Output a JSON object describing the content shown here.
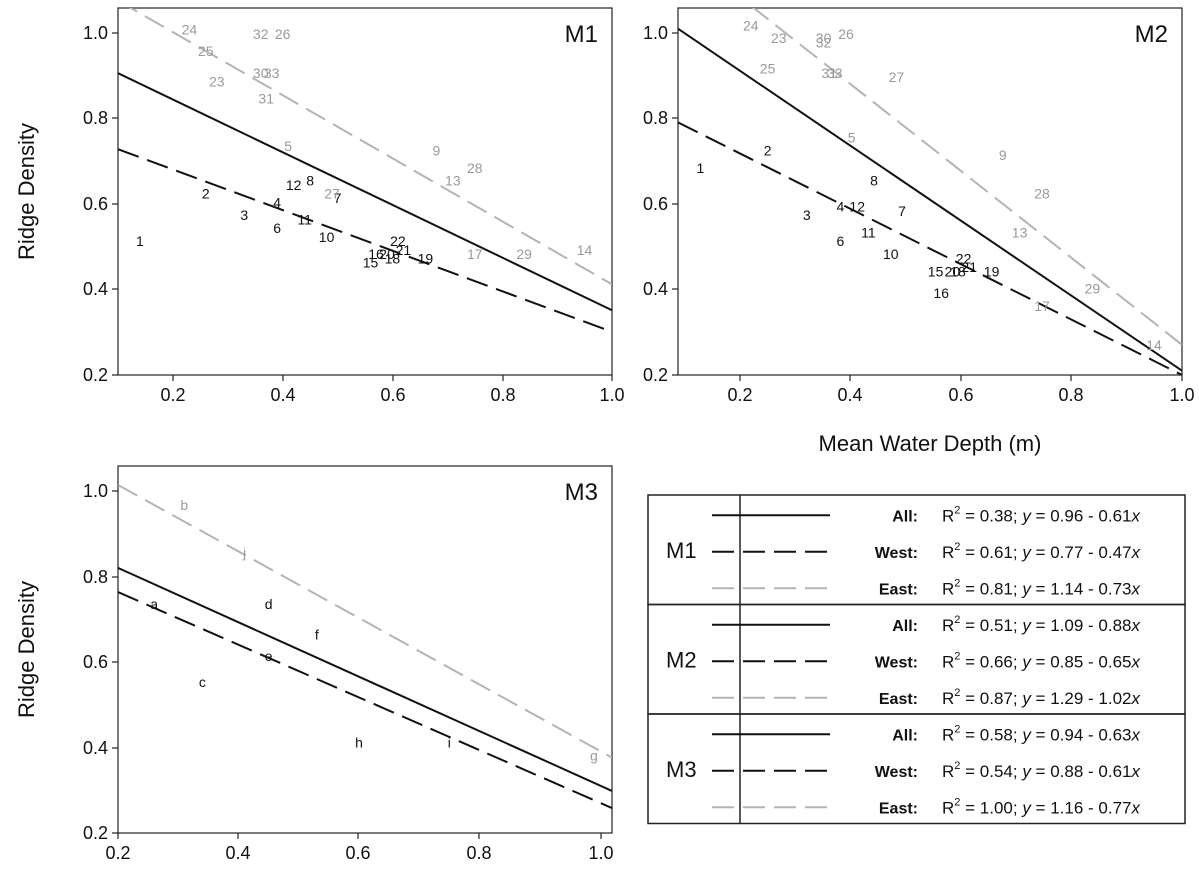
{
  "chart_data": [
    {
      "type": "scatter",
      "panel": "M1",
      "title": "M1",
      "xlabel": "",
      "ylabel": "Ridge Density",
      "xlim": [
        0.1,
        1.0
      ],
      "ylim": [
        0.2,
        1.05
      ],
      "xticks": [
        "0.2",
        "0.4",
        "0.6",
        "0.8",
        "1.0"
      ],
      "yticks": [
        "0.2",
        "0.4",
        "0.6",
        "0.8",
        "1.0"
      ],
      "lines": [
        {
          "name": "All",
          "intercept": 0.96,
          "slope": -0.61,
          "style": "solid",
          "color": "#111111"
        },
        {
          "name": "West",
          "intercept": 0.77,
          "slope": -0.47,
          "style": "dashed",
          "color": "#111111"
        },
        {
          "name": "East",
          "intercept": 1.14,
          "slope": -0.73,
          "style": "dashed",
          "color": "#b4b4b4"
        }
      ],
      "points": [
        {
          "label": "1",
          "x": 0.14,
          "y": 0.51,
          "group": "West"
        },
        {
          "label": "2",
          "x": 0.26,
          "y": 0.62,
          "group": "West"
        },
        {
          "label": "3",
          "x": 0.33,
          "y": 0.57,
          "group": "West"
        },
        {
          "label": "4",
          "x": 0.39,
          "y": 0.6,
          "group": "West"
        },
        {
          "label": "5",
          "x": 0.41,
          "y": 0.73,
          "group": "East"
        },
        {
          "label": "6",
          "x": 0.39,
          "y": 0.54,
          "group": "West"
        },
        {
          "label": "7",
          "x": 0.5,
          "y": 0.61,
          "group": "West"
        },
        {
          "label": "8",
          "x": 0.45,
          "y": 0.65,
          "group": "West"
        },
        {
          "label": "9",
          "x": 0.68,
          "y": 0.72,
          "group": "East"
        },
        {
          "label": "10",
          "x": 0.48,
          "y": 0.52,
          "group": "West"
        },
        {
          "label": "11",
          "x": 0.44,
          "y": 0.56,
          "group": "West"
        },
        {
          "label": "12",
          "x": 0.42,
          "y": 0.64,
          "group": "West"
        },
        {
          "label": "13",
          "x": 0.71,
          "y": 0.65,
          "group": "East"
        },
        {
          "label": "14",
          "x": 0.95,
          "y": 0.49,
          "group": "East"
        },
        {
          "label": "15",
          "x": 0.56,
          "y": 0.46,
          "group": "West"
        },
        {
          "label": "16",
          "x": 0.57,
          "y": 0.48,
          "group": "West"
        },
        {
          "label": "17",
          "x": 0.75,
          "y": 0.48,
          "group": "East"
        },
        {
          "label": "18",
          "x": 0.6,
          "y": 0.47,
          "group": "West"
        },
        {
          "label": "19",
          "x": 0.66,
          "y": 0.47,
          "group": "West"
        },
        {
          "label": "20",
          "x": 0.59,
          "y": 0.48,
          "group": "West"
        },
        {
          "label": "21",
          "x": 0.62,
          "y": 0.49,
          "group": "West"
        },
        {
          "label": "22",
          "x": 0.61,
          "y": 0.51,
          "group": "West"
        },
        {
          "label": "23",
          "x": 0.28,
          "y": 0.88,
          "group": "East"
        },
        {
          "label": "24",
          "x": 0.23,
          "y": 1.0,
          "group": "East"
        },
        {
          "label": "25",
          "x": 0.26,
          "y": 0.95,
          "group": "East"
        },
        {
          "label": "26",
          "x": 0.4,
          "y": 0.99,
          "group": "East"
        },
        {
          "label": "27",
          "x": 0.49,
          "y": 0.62,
          "group": "East"
        },
        {
          "label": "28",
          "x": 0.75,
          "y": 0.68,
          "group": "East"
        },
        {
          "label": "29",
          "x": 0.84,
          "y": 0.48,
          "group": "East"
        },
        {
          "label": "30",
          "x": 0.36,
          "y": 0.9,
          "group": "East"
        },
        {
          "label": "31",
          "x": 0.37,
          "y": 0.84,
          "group": "East"
        },
        {
          "label": "32",
          "x": 0.36,
          "y": 0.99,
          "group": "East"
        },
        {
          "label": "33",
          "x": 0.38,
          "y": 0.9,
          "group": "East"
        }
      ]
    },
    {
      "type": "scatter",
      "panel": "M2",
      "title": "M2",
      "xlabel": "Mean Water Depth (m)",
      "ylabel": "",
      "xlim": [
        0.1,
        1.0
      ],
      "ylim": [
        0.2,
        1.05
      ],
      "xticks": [
        "0.2",
        "0.4",
        "0.6",
        "0.8",
        "1.0"
      ],
      "yticks": [
        "0.2",
        "0.4",
        "0.6",
        "0.8",
        "1.0"
      ],
      "lines": [
        {
          "name": "All",
          "intercept": 1.09,
          "slope": -0.88,
          "style": "solid",
          "color": "#111111"
        },
        {
          "name": "West",
          "intercept": 0.85,
          "slope": -0.65,
          "style": "dashed",
          "color": "#111111"
        },
        {
          "name": "East",
          "intercept": 1.29,
          "slope": -1.02,
          "style": "dashed",
          "color": "#b4b4b4"
        }
      ],
      "points": [
        {
          "label": "1",
          "x": 0.14,
          "y": 0.68,
          "group": "West"
        },
        {
          "label": "2",
          "x": 0.26,
          "y": 0.72,
          "group": "West"
        },
        {
          "label": "3",
          "x": 0.33,
          "y": 0.57,
          "group": "West"
        },
        {
          "label": "4",
          "x": 0.39,
          "y": 0.59,
          "group": "West"
        },
        {
          "label": "5",
          "x": 0.41,
          "y": 0.75,
          "group": "East"
        },
        {
          "label": "6",
          "x": 0.39,
          "y": 0.51,
          "group": "West"
        },
        {
          "label": "7",
          "x": 0.5,
          "y": 0.58,
          "group": "West"
        },
        {
          "label": "8",
          "x": 0.45,
          "y": 0.65,
          "group": "West"
        },
        {
          "label": "9",
          "x": 0.68,
          "y": 0.71,
          "group": "East"
        },
        {
          "label": "10",
          "x": 0.48,
          "y": 0.48,
          "group": "West"
        },
        {
          "label": "11",
          "x": 0.44,
          "y": 0.53,
          "group": "West"
        },
        {
          "label": "12",
          "x": 0.42,
          "y": 0.59,
          "group": "West"
        },
        {
          "label": "13",
          "x": 0.71,
          "y": 0.53,
          "group": "East"
        },
        {
          "label": "14",
          "x": 0.95,
          "y": 0.27,
          "group": "East"
        },
        {
          "label": "15",
          "x": 0.56,
          "y": 0.44,
          "group": "West"
        },
        {
          "label": "16",
          "x": 0.57,
          "y": 0.39,
          "group": "West"
        },
        {
          "label": "17",
          "x": 0.75,
          "y": 0.36,
          "group": "East"
        },
        {
          "label": "18",
          "x": 0.6,
          "y": 0.44,
          "group": "West"
        },
        {
          "label": "19",
          "x": 0.66,
          "y": 0.44,
          "group": "West"
        },
        {
          "label": "20",
          "x": 0.59,
          "y": 0.44,
          "group": "West"
        },
        {
          "label": "21",
          "x": 0.62,
          "y": 0.45,
          "group": "West"
        },
        {
          "label": "22",
          "x": 0.61,
          "y": 0.47,
          "group": "West"
        },
        {
          "label": "23",
          "x": 0.28,
          "y": 0.98,
          "group": "East"
        },
        {
          "label": "24",
          "x": 0.23,
          "y": 1.01,
          "group": "East"
        },
        {
          "label": "25",
          "x": 0.26,
          "y": 0.91,
          "group": "East"
        },
        {
          "label": "26",
          "x": 0.4,
          "y": 0.99,
          "group": "East"
        },
        {
          "label": "27",
          "x": 0.49,
          "y": 0.89,
          "group": "East"
        },
        {
          "label": "28",
          "x": 0.75,
          "y": 0.62,
          "group": "East"
        },
        {
          "label": "29",
          "x": 0.84,
          "y": 0.4,
          "group": "East"
        },
        {
          "label": "30",
          "x": 0.36,
          "y": 0.98,
          "group": "East"
        },
        {
          "label": "31",
          "x": 0.37,
          "y": 0.9,
          "group": "East"
        },
        {
          "label": "32",
          "x": 0.36,
          "y": 0.97,
          "group": "East"
        },
        {
          "label": "33",
          "x": 0.38,
          "y": 0.9,
          "group": "East"
        }
      ]
    },
    {
      "type": "scatter",
      "panel": "M3",
      "title": "M3",
      "xlabel": "Mean Water Depth (m)",
      "ylabel": "Ridge Density",
      "xlim": [
        0.2,
        1.02
      ],
      "ylim": [
        0.2,
        1.05
      ],
      "xticks": [
        "0.2",
        "0.4",
        "0.6",
        "0.8",
        "1.0"
      ],
      "yticks": [
        "0.2",
        "0.4",
        "0.6",
        "0.8",
        "1.0"
      ],
      "lines": [
        {
          "name": "All",
          "intercept": 0.94,
          "slope": -0.63,
          "style": "solid",
          "color": "#111111"
        },
        {
          "name": "West",
          "intercept": 0.88,
          "slope": -0.61,
          "style": "dashed",
          "color": "#111111"
        },
        {
          "name": "East",
          "intercept": 1.16,
          "slope": -0.77,
          "style": "dashed",
          "color": "#b4b4b4"
        }
      ],
      "points": [
        {
          "label": "a",
          "x": 0.26,
          "y": 0.73,
          "group": "West"
        },
        {
          "label": "b",
          "x": 0.31,
          "y": 0.96,
          "group": "East"
        },
        {
          "label": "c",
          "x": 0.34,
          "y": 0.55,
          "group": "West"
        },
        {
          "label": "d",
          "x": 0.45,
          "y": 0.73,
          "group": "West"
        },
        {
          "label": "e",
          "x": 0.45,
          "y": 0.61,
          "group": "West"
        },
        {
          "label": "f",
          "x": 0.53,
          "y": 0.66,
          "group": "West"
        },
        {
          "label": "g",
          "x": 0.99,
          "y": 0.38,
          "group": "East"
        },
        {
          "label": "h",
          "x": 0.6,
          "y": 0.41,
          "group": "West"
        },
        {
          "label": "i",
          "x": 0.75,
          "y": 0.41,
          "group": "West"
        },
        {
          "label": "j",
          "x": 0.41,
          "y": 0.85,
          "group": "East"
        }
      ]
    }
  ],
  "legend": {
    "groups": [
      {
        "model": "M1",
        "rows": [
          {
            "series": "All:",
            "r2_value": " = 0.38; ",
            "eq_lhs": "y",
            "eq_rhs": " = 0.96 - 0.61",
            "eq_var": "x",
            "style": "solid",
            "color": "#111111"
          },
          {
            "series": "West:",
            "r2_value": " = 0.61; ",
            "eq_lhs": "y",
            "eq_rhs": " = 0.77 - 0.47",
            "eq_var": "x",
            "style": "dashed",
            "color": "#111111"
          },
          {
            "series": "East:",
            "r2_value": " = 0.81; ",
            "eq_lhs": "y",
            "eq_rhs": " = 1.14 - 0.73",
            "eq_var": "x",
            "style": "dashed",
            "color": "#b4b4b4"
          }
        ]
      },
      {
        "model": "M2",
        "rows": [
          {
            "series": "All:",
            "r2_value": " = 0.51; ",
            "eq_lhs": "y",
            "eq_rhs": " = 1.09 - 0.88",
            "eq_var": "x",
            "style": "solid",
            "color": "#111111"
          },
          {
            "series": "West:",
            "r2_value": " = 0.66; ",
            "eq_lhs": "y",
            "eq_rhs": " = 0.85 - 0.65",
            "eq_var": "x",
            "style": "dashed",
            "color": "#111111"
          },
          {
            "series": "East:",
            "r2_value": " = 0.87; ",
            "eq_lhs": "y",
            "eq_rhs": " = 1.29 - 1.02",
            "eq_var": "x",
            "style": "dashed",
            "color": "#b4b4b4"
          }
        ]
      },
      {
        "model": "M3",
        "rows": [
          {
            "series": "All:",
            "r2_value": " = 0.58; ",
            "eq_lhs": "y",
            "eq_rhs": " = 0.94 - 0.63",
            "eq_var": "x",
            "style": "solid",
            "color": "#111111"
          },
          {
            "series": "West:",
            "r2_value": " = 0.54; ",
            "eq_lhs": "y",
            "eq_rhs": " = 0.88 - 0.61",
            "eq_var": "x",
            "style": "dashed",
            "color": "#111111"
          },
          {
            "series": "East:",
            "r2_value": " = 1.00; ",
            "eq_lhs": "y",
            "eq_rhs": " = 1.16 - 0.77",
            "eq_var": "x",
            "style": "dashed",
            "color": "#b4b4b4"
          }
        ]
      }
    ],
    "r2_symbol": "R",
    "r2_power": "2"
  },
  "colors": {
    "west": "#111111",
    "east": "#9a9a9a",
    "east_line": "#b4b4b4"
  }
}
